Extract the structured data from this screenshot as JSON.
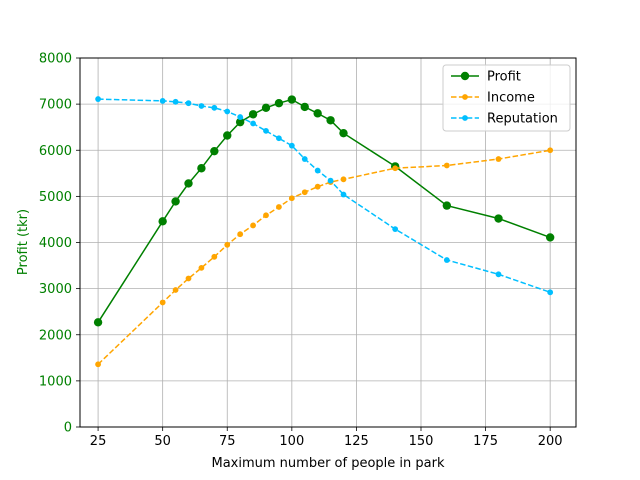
{
  "chart_data": {
    "type": "line",
    "title": "",
    "xlabel": "Maximum number of people in park",
    "ylabel": "Profit (tkr)",
    "xlim": [
      18,
      210
    ],
    "ylim": [
      0,
      8000
    ],
    "xticks": [
      25,
      50,
      75,
      100,
      125,
      150,
      175,
      200
    ],
    "yticks": [
      0,
      1000,
      2000,
      3000,
      4000,
      5000,
      6000,
      7000,
      8000
    ],
    "grid": true,
    "legend_position": "top-right",
    "colors": {
      "profit": "#008000",
      "income": "#ffa500",
      "reputation": "#00bfff",
      "ylabel": "#008000",
      "grid": "#b0b0b0"
    },
    "series": [
      {
        "name": "Profit",
        "style": "solid",
        "marker": "circle-large",
        "color": "#008000",
        "x": [
          25,
          50,
          55,
          60,
          65,
          70,
          75,
          80,
          85,
          90,
          95,
          100,
          105,
          110,
          115,
          120,
          140,
          160,
          180,
          200
        ],
        "y": [
          2270,
          4460,
          4890,
          5280,
          5610,
          5980,
          6320,
          6610,
          6780,
          6920,
          7020,
          7100,
          6940,
          6800,
          6650,
          6370,
          5650,
          4800,
          4520,
          4110
        ]
      },
      {
        "name": "Income",
        "style": "dashed",
        "marker": "circle-small",
        "color": "#ffa500",
        "x": [
          25,
          50,
          55,
          60,
          65,
          70,
          75,
          80,
          85,
          90,
          95,
          100,
          105,
          110,
          115,
          120,
          140,
          160,
          180,
          200
        ],
        "y": [
          1360,
          2700,
          2970,
          3220,
          3450,
          3690,
          3950,
          4180,
          4370,
          4590,
          4770,
          4960,
          5090,
          5210,
          5310,
          5370,
          5610,
          5670,
          5810,
          6000
        ]
      },
      {
        "name": "Reputation",
        "style": "dashed",
        "marker": "circle-small",
        "color": "#00bfff",
        "x": [
          25,
          50,
          55,
          60,
          65,
          70,
          75,
          80,
          85,
          90,
          95,
          100,
          105,
          110,
          115,
          120,
          140,
          160,
          180,
          200
        ],
        "y": [
          7110,
          7070,
          7050,
          7020,
          6960,
          6920,
          6840,
          6720,
          6580,
          6420,
          6260,
          6100,
          5810,
          5560,
          5340,
          5040,
          4290,
          3620,
          3310,
          2920
        ]
      }
    ]
  }
}
